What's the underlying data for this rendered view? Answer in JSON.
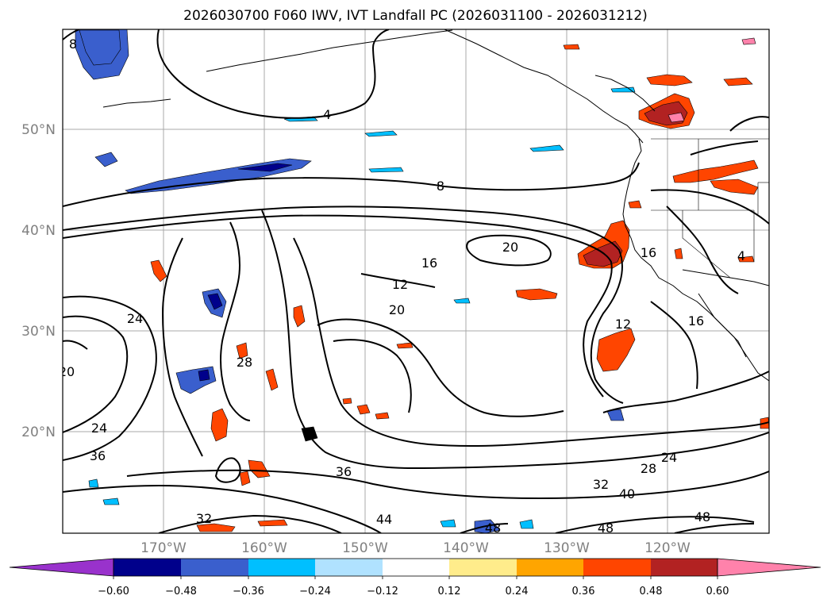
{
  "title": "2026030700 F060 IWV, IVT Landfall PC (2026031100 - 2026031212)",
  "map": {
    "lat_ticks": [
      "50°N",
      "40°N",
      "30°N",
      "20°N"
    ],
    "lon_ticks": [
      "170°W",
      "160°W",
      "150°W",
      "140°W",
      "130°W",
      "120°W"
    ],
    "grid": true
  },
  "contour_labels": [
    "8",
    "4",
    "8",
    "20",
    "16",
    "12",
    "20",
    "16",
    "12",
    "24",
    "16",
    "4",
    "20",
    "24",
    "36",
    "36",
    "28",
    "32",
    "40",
    "24",
    "32",
    "44",
    "48",
    "48",
    "48",
    "28"
  ],
  "colorbar": {
    "tick_labels": [
      "−0.60",
      "−0.48",
      "−0.36",
      "−0.24",
      "−0.12",
      "0.12",
      "0.24",
      "0.36",
      "0.48",
      "0.60"
    ],
    "colors": [
      "#9932CC",
      "#00008B",
      "#3A5FCD",
      "#00BFFF",
      "#B0E2FF",
      "#FFFFFF",
      "#FFEC8B",
      "#FFA500",
      "#FF4500",
      "#B22222",
      "#FF82AB"
    ]
  }
}
